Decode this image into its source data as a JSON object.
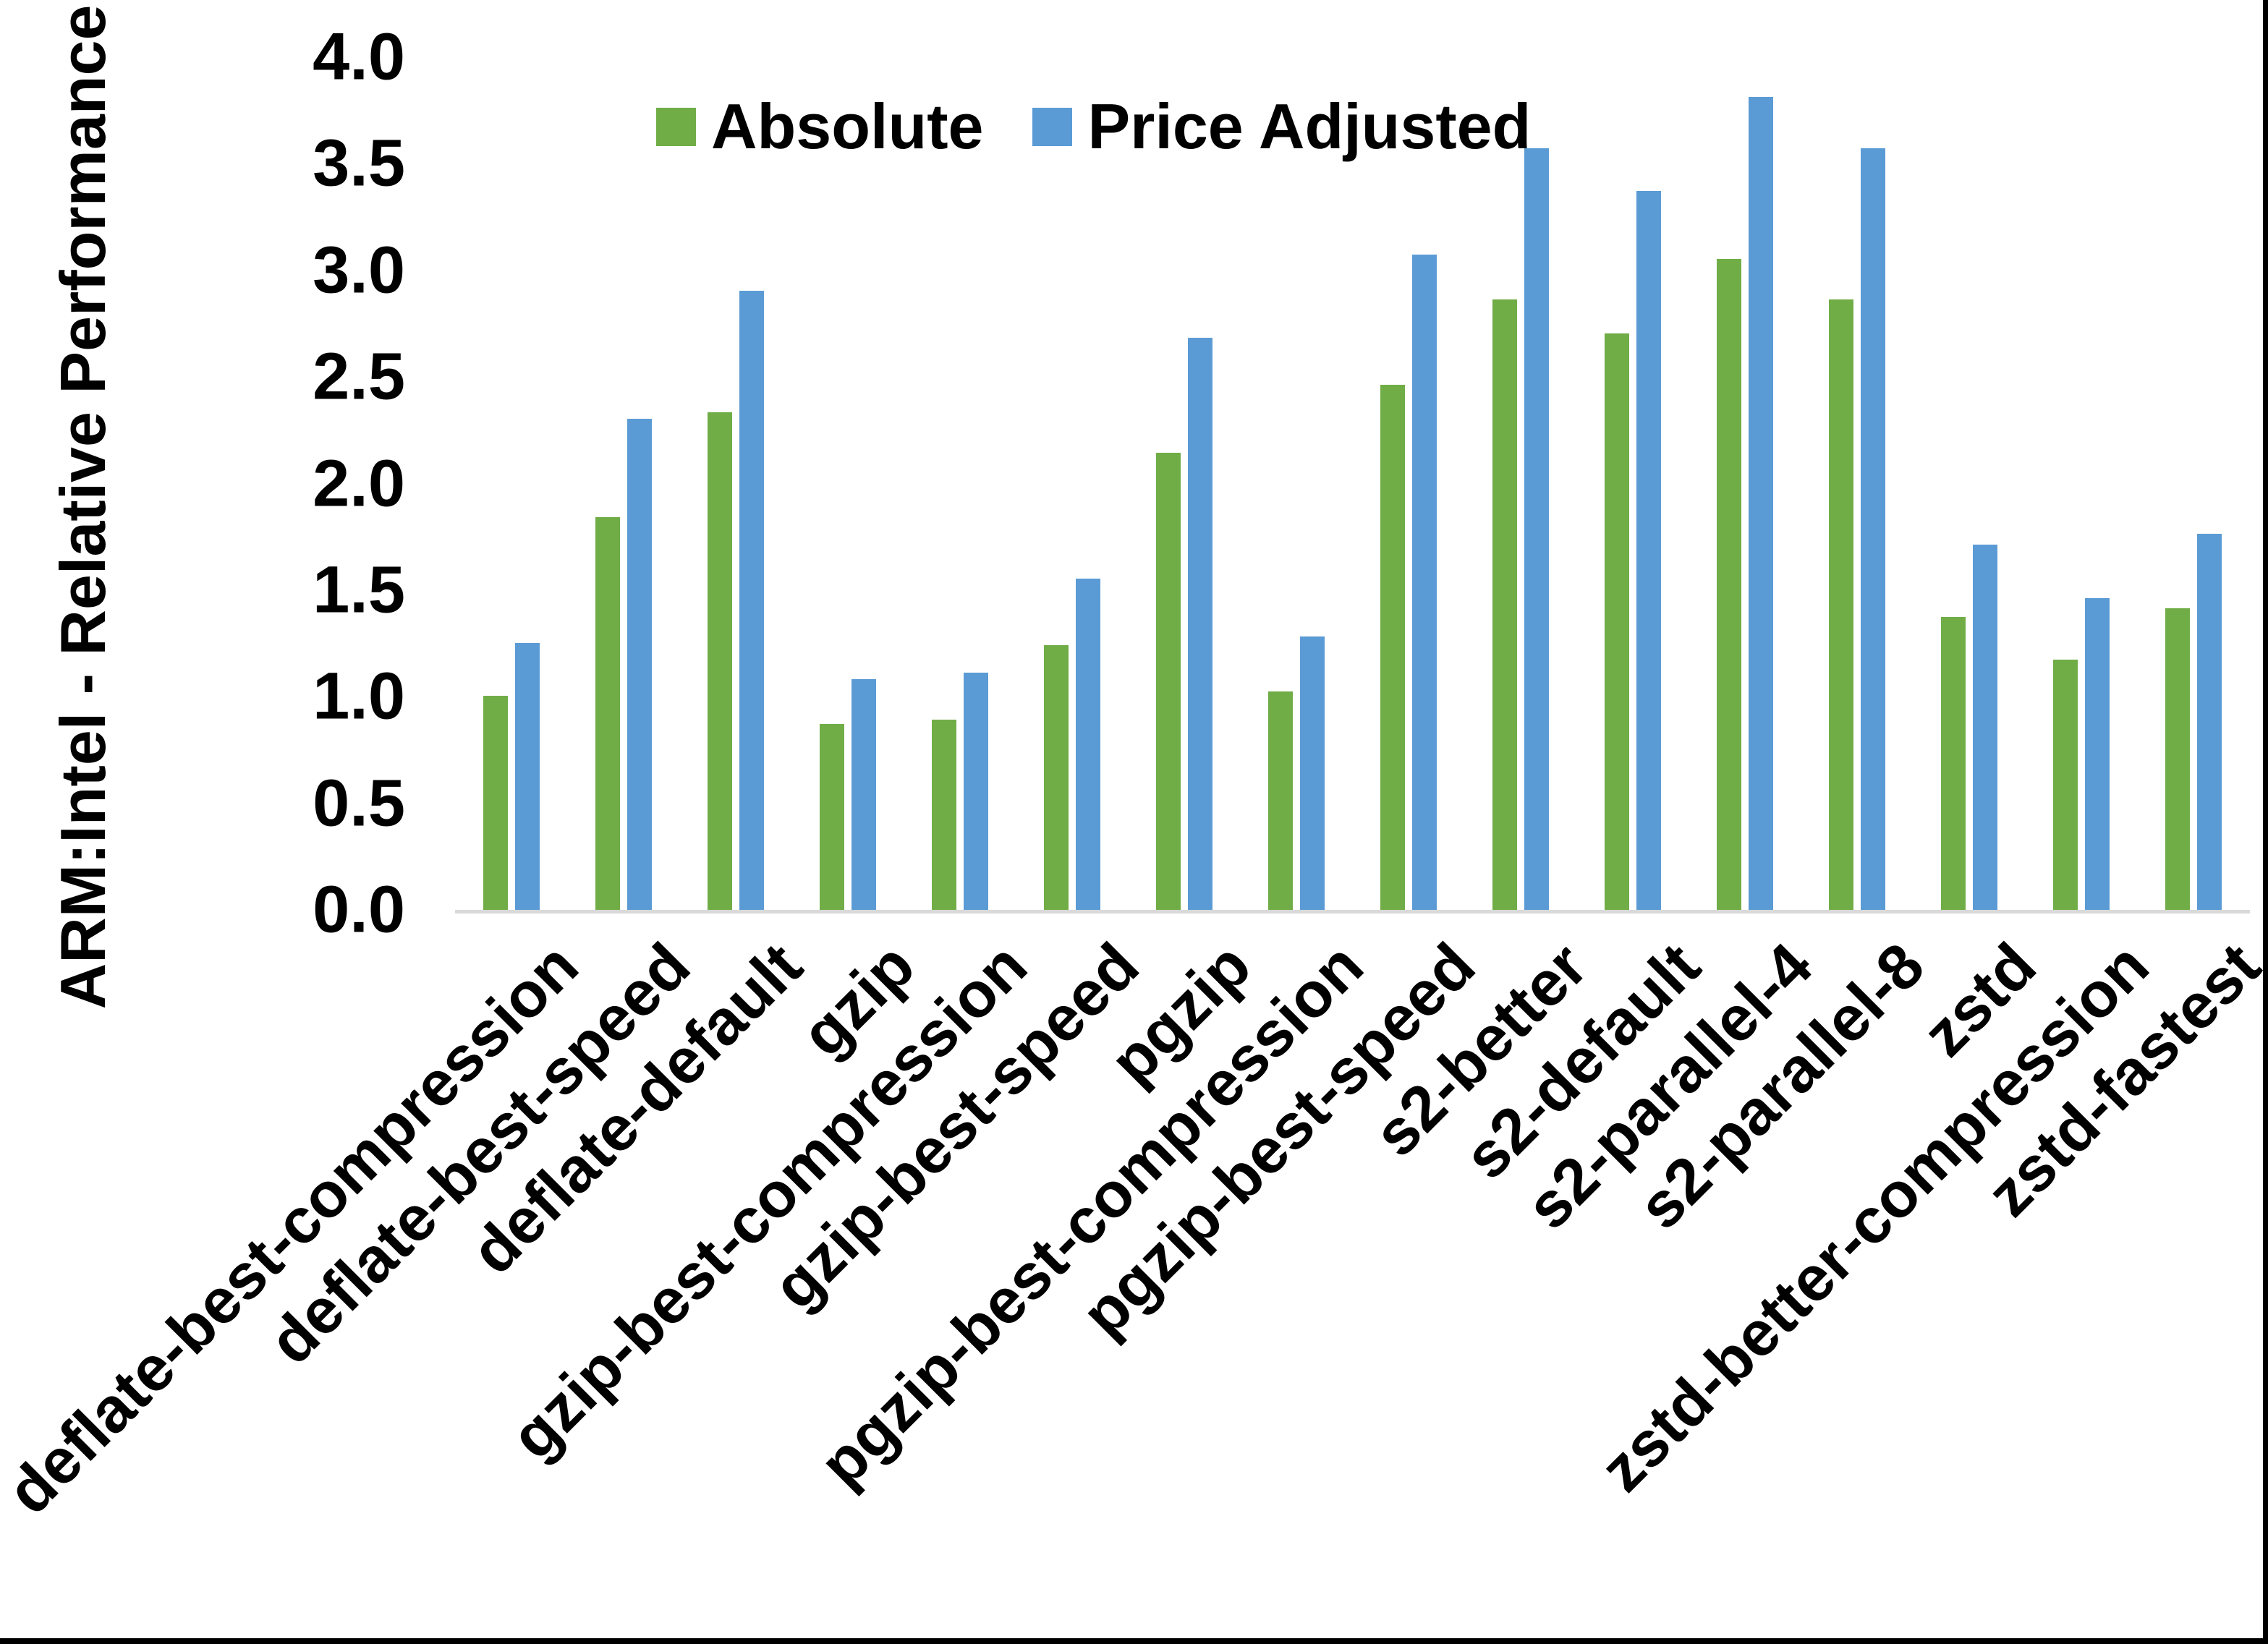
{
  "chart_data": {
    "type": "bar",
    "title": "",
    "ylabel": "ARM:Intel - Relative Performance",
    "xlabel": "",
    "ylim": [
      0.0,
      4.0
    ],
    "ytick_step": 0.5,
    "ytick_labels": [
      "0.0",
      "0.5",
      "1.0",
      "1.5",
      "2.0",
      "2.5",
      "3.0",
      "3.5",
      "4.0"
    ],
    "grid": false,
    "legend_position": "top",
    "categories": [
      "deflate-best-compression",
      "deflate-best-speed",
      "deflate-default",
      "gzip",
      "gzip-best-compression",
      "gzip-best-speed",
      "pgzip",
      "pgzip-best-compression",
      "pgzip-best-speed",
      "s2-better",
      "s2-default",
      "s2-parallel-4",
      "s2-parallel-8",
      "zstd",
      "zstd-better-compression",
      "zstd-fastest"
    ],
    "series": [
      {
        "name": "Absolute",
        "color": "#70AD47",
        "values": [
          1.01,
          1.85,
          2.34,
          0.88,
          0.9,
          1.25,
          2.15,
          1.03,
          2.47,
          2.87,
          2.71,
          3.06,
          2.87,
          1.38,
          1.18,
          1.42
        ]
      },
      {
        "name": "Price Adjusted",
        "color": "#5B9BD5",
        "values": [
          1.26,
          2.31,
          2.91,
          1.09,
          1.12,
          1.56,
          2.69,
          1.29,
          3.08,
          3.58,
          3.38,
          3.82,
          3.58,
          1.72,
          1.47,
          1.77
        ]
      }
    ],
    "axis_line_color": "#D9D9D9",
    "text_color": "#000000",
    "background_color": "#FFFFFF"
  }
}
